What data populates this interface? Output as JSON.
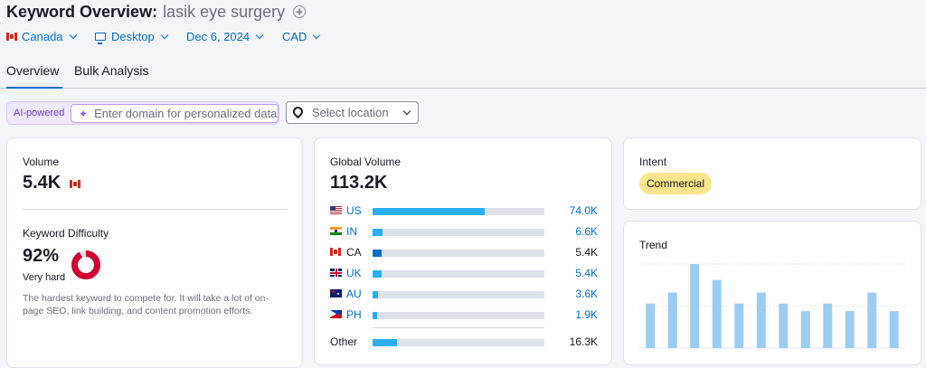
{
  "header": {
    "title": "Keyword Overview:",
    "keyword": "lasik eye surgery"
  },
  "filters": {
    "country": "Canada",
    "device": "Desktop",
    "date": "Dec 6, 2024",
    "currency": "CAD"
  },
  "tabs": [
    {
      "label": "Overview",
      "active": true
    },
    {
      "label": "Bulk Analysis",
      "active": false
    }
  ],
  "ai": {
    "badge": "AI-powered",
    "placeholder": "Enter domain for personalized data"
  },
  "location": {
    "placeholder": "Select location"
  },
  "volume": {
    "label": "Volume",
    "value": "5.4K"
  },
  "difficulty": {
    "label": "Keyword Difficulty",
    "value": "92%",
    "percent": 92,
    "level": "Very hard",
    "description_line1": "The hardest keyword to compete for. It will take a lot of on-",
    "description_line2": "page SEO, link building, and content promotion efforts.",
    "color": "#d1002f"
  },
  "global_volume": {
    "label": "Global Volume",
    "value": "113.2K",
    "countries": [
      {
        "code": "US",
        "flag": "us-flag-icon",
        "value": "74.0K",
        "share": 0.65,
        "link": true
      },
      {
        "code": "IN",
        "flag": "in-flag-icon",
        "value": "6.6K",
        "share": 0.06,
        "link": true
      },
      {
        "code": "CA",
        "flag": "ca-flag-icon",
        "value": "5.4K",
        "share": 0.05,
        "link": false
      },
      {
        "code": "UK",
        "flag": "uk-flag-icon",
        "value": "5.4K",
        "share": 0.05,
        "link": true
      },
      {
        "code": "AU",
        "flag": "au-flag-icon",
        "value": "3.6K",
        "share": 0.03,
        "link": true
      },
      {
        "code": "PH",
        "flag": "ph-flag-icon",
        "value": "1.9K",
        "share": 0.02,
        "link": true
      }
    ],
    "other": {
      "label": "Other",
      "value": "16.3K",
      "share": 0.14
    }
  },
  "intent": {
    "label": "Intent",
    "value": "Commercial",
    "color": "#fde58d"
  },
  "trend": {
    "label": "Trend",
    "color": "#9ccdf0"
  },
  "chart_data": {
    "type": "bar",
    "title": "Trend",
    "values": [
      0.53,
      0.66,
      1.0,
      0.81,
      0.53,
      0.66,
      0.53,
      0.44,
      0.53,
      0.44,
      0.66,
      0.44
    ],
    "ylim": [
      0,
      1
    ],
    "grid": true
  }
}
